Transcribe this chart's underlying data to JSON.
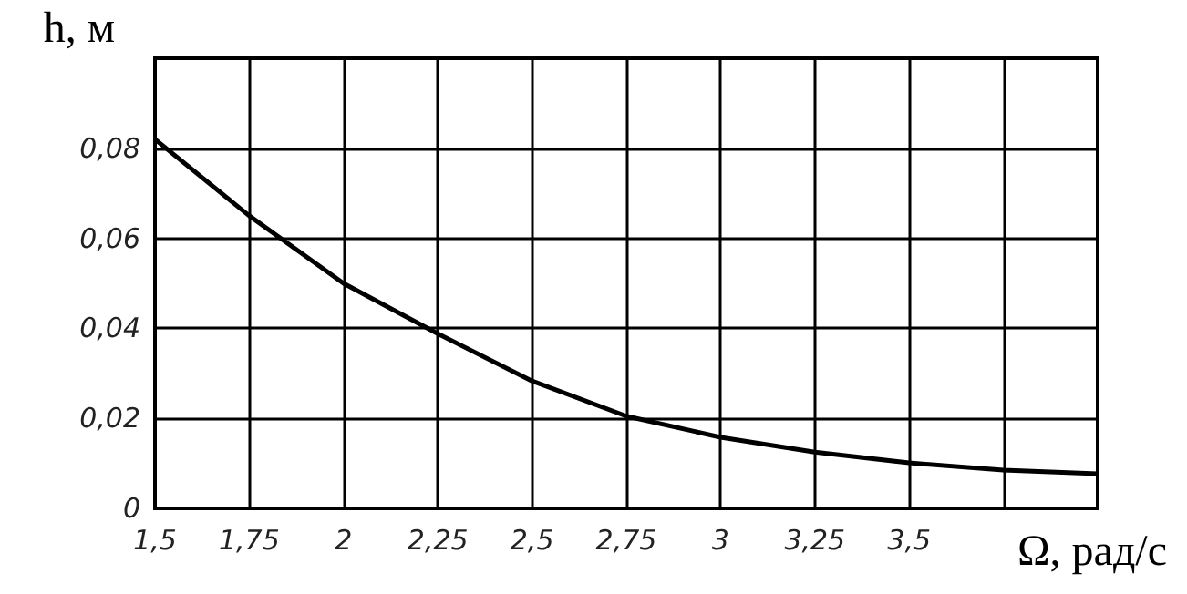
{
  "chart_data": {
    "type": "line",
    "xlabel": "Ω, рад/с",
    "ylabel": "h, м",
    "color": "#000000",
    "x": [
      1.5,
      1.75,
      2,
      2.25,
      2.5,
      2.75,
      3,
      3.25,
      3.5,
      3.75,
      4
    ],
    "values": [
      0.082,
      0.065,
      0.05,
      0.0388,
      0.0283,
      0.0205,
      0.0158,
      0.0125,
      0.0101,
      0.0085,
      0.0077
    ],
    "xlim": [
      1.5,
      4
    ],
    "xticks": [
      {
        "value": 1.5,
        "label": "1,5"
      },
      {
        "value": 1.75,
        "label": "1,75"
      },
      {
        "value": 2,
        "label": "2"
      },
      {
        "value": 2.25,
        "label": "2,25"
      },
      {
        "value": 2.5,
        "label": "2,5"
      },
      {
        "value": 2.75,
        "label": "2,75"
      },
      {
        "value": 3,
        "label": "3"
      },
      {
        "value": 3.25,
        "label": "3,25"
      },
      {
        "value": 3.5,
        "label": "3,5"
      },
      {
        "value": 3.75,
        "label": null
      },
      {
        "value": 4,
        "label": null
      }
    ],
    "ylim": [
      0,
      0.1
    ],
    "yticks": [
      0,
      {
        "value": 0.02,
        "label": "0,02"
      },
      {
        "value": 0.04,
        "label": "0,04"
      },
      {
        "value": 0.06,
        "label": "0,06"
      },
      {
        "value": 0.08,
        "label": "0,08"
      },
      {
        "value": 0.1,
        "label": null
      }
    ],
    "grid": true,
    "marker": "none",
    "line_style": "solid"
  }
}
